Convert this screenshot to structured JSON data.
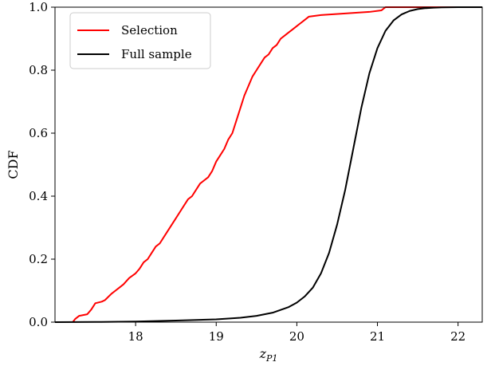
{
  "chart_data": {
    "type": "line",
    "title": "",
    "xlabel": "z",
    "xlabel_sub": "P1",
    "ylabel": "CDF",
    "xlim": [
      17.0,
      22.3
    ],
    "ylim": [
      0.0,
      1.0
    ],
    "x_ticks": [
      18,
      19,
      20,
      21,
      22
    ],
    "y_ticks": [
      0.0,
      0.2,
      0.4,
      0.6,
      0.8,
      1.0
    ],
    "x_tick_labels": [
      "18",
      "19",
      "20",
      "21",
      "22"
    ],
    "y_tick_labels": [
      "0.0",
      "0.2",
      "0.4",
      "0.6",
      "0.8",
      "1.0"
    ],
    "grid": false,
    "legend_position": "top-left",
    "series": [
      {
        "name": "Selection",
        "color": "#ff0000",
        "x": [
          17.22,
          17.25,
          17.3,
          17.4,
          17.45,
          17.5,
          17.58,
          17.62,
          17.7,
          17.75,
          17.8,
          17.85,
          17.92,
          18.0,
          18.05,
          18.1,
          18.15,
          18.2,
          18.25,
          18.3,
          18.35,
          18.4,
          18.45,
          18.5,
          18.55,
          18.6,
          18.65,
          18.7,
          18.75,
          18.8,
          18.85,
          18.9,
          18.95,
          19.0,
          19.05,
          19.1,
          19.15,
          19.2,
          19.25,
          19.3,
          19.35,
          19.4,
          19.45,
          19.5,
          19.55,
          19.6,
          19.65,
          19.7,
          19.75,
          19.8,
          19.85,
          19.9,
          19.95,
          20.0,
          20.05,
          20.1,
          20.15,
          20.3,
          20.6,
          20.9,
          21.05,
          21.1,
          21.2,
          21.3,
          21.5,
          22.3
        ],
        "y": [
          0.0,
          0.01,
          0.02,
          0.025,
          0.04,
          0.06,
          0.065,
          0.07,
          0.09,
          0.1,
          0.11,
          0.12,
          0.14,
          0.155,
          0.17,
          0.19,
          0.2,
          0.22,
          0.24,
          0.25,
          0.27,
          0.29,
          0.31,
          0.33,
          0.35,
          0.37,
          0.39,
          0.4,
          0.42,
          0.44,
          0.45,
          0.46,
          0.48,
          0.51,
          0.53,
          0.55,
          0.58,
          0.6,
          0.64,
          0.68,
          0.72,
          0.75,
          0.78,
          0.8,
          0.82,
          0.84,
          0.85,
          0.87,
          0.88,
          0.9,
          0.91,
          0.92,
          0.93,
          0.94,
          0.95,
          0.96,
          0.97,
          0.975,
          0.98,
          0.985,
          0.99,
          1.0,
          1.0,
          1.0,
          1.0,
          1.0
        ]
      },
      {
        "name": "Full sample",
        "color": "#000000",
        "x": [
          17.0,
          17.5,
          18.0,
          18.5,
          19.0,
          19.3,
          19.5,
          19.7,
          19.9,
          20.0,
          20.1,
          20.2,
          20.3,
          20.4,
          20.5,
          20.6,
          20.7,
          20.8,
          20.9,
          21.0,
          21.1,
          21.2,
          21.3,
          21.4,
          21.5,
          21.6,
          21.7,
          21.8,
          21.9,
          22.0,
          22.3
        ],
        "y": [
          0.0,
          0.0005,
          0.002,
          0.005,
          0.009,
          0.014,
          0.02,
          0.03,
          0.048,
          0.062,
          0.082,
          0.11,
          0.155,
          0.22,
          0.31,
          0.42,
          0.55,
          0.68,
          0.79,
          0.87,
          0.925,
          0.958,
          0.977,
          0.988,
          0.994,
          0.997,
          0.9985,
          0.9993,
          0.9997,
          0.9999,
          1.0
        ]
      }
    ]
  }
}
